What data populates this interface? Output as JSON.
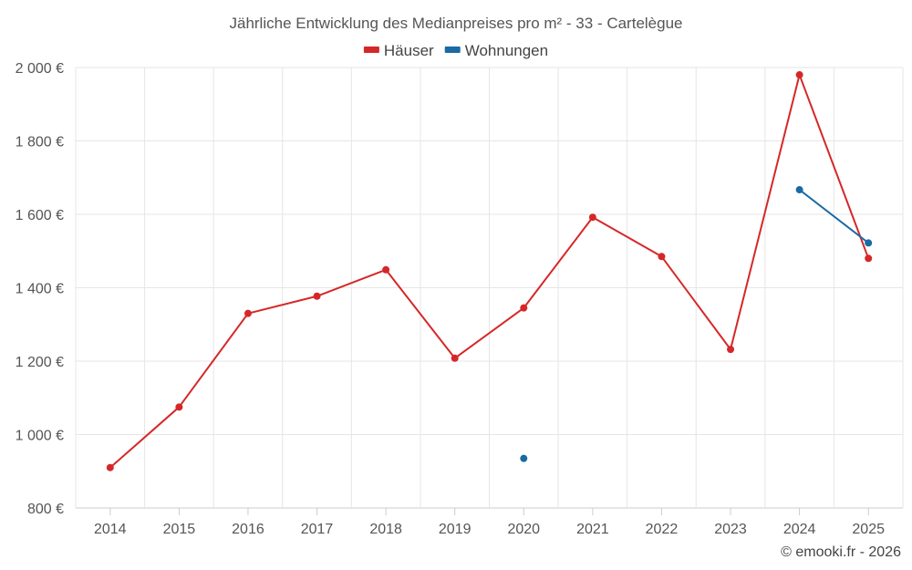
{
  "chart_data": {
    "type": "line",
    "title": "Jährliche Entwicklung des Medianpreises pro m² - 33 - Cartelègue",
    "xlabel": "",
    "ylabel": "",
    "categories": [
      "2014",
      "2015",
      "2016",
      "2017",
      "2018",
      "2019",
      "2020",
      "2021",
      "2022",
      "2023",
      "2024",
      "2025"
    ],
    "ylim": [
      800,
      2000
    ],
    "yticks": [
      800,
      1000,
      1200,
      1400,
      1600,
      1800,
      2000
    ],
    "ytick_labels": [
      "800 €",
      "1 000 €",
      "1 200 €",
      "1 400 €",
      "1 600 €",
      "1 800 €",
      "2 000 €"
    ],
    "grid": true,
    "legend_position": "top-center",
    "series": [
      {
        "name": "Häuser",
        "color": "#d62728",
        "values": [
          910,
          1075,
          1330,
          1377,
          1449,
          1208,
          1345,
          1592,
          1485,
          1232,
          1980,
          1480
        ]
      },
      {
        "name": "Wohnungen",
        "color": "#1a6aa3",
        "values": [
          null,
          null,
          null,
          null,
          null,
          null,
          935,
          null,
          null,
          null,
          1667,
          1522
        ]
      }
    ]
  },
  "credit": "© emooki.fr - 2026"
}
